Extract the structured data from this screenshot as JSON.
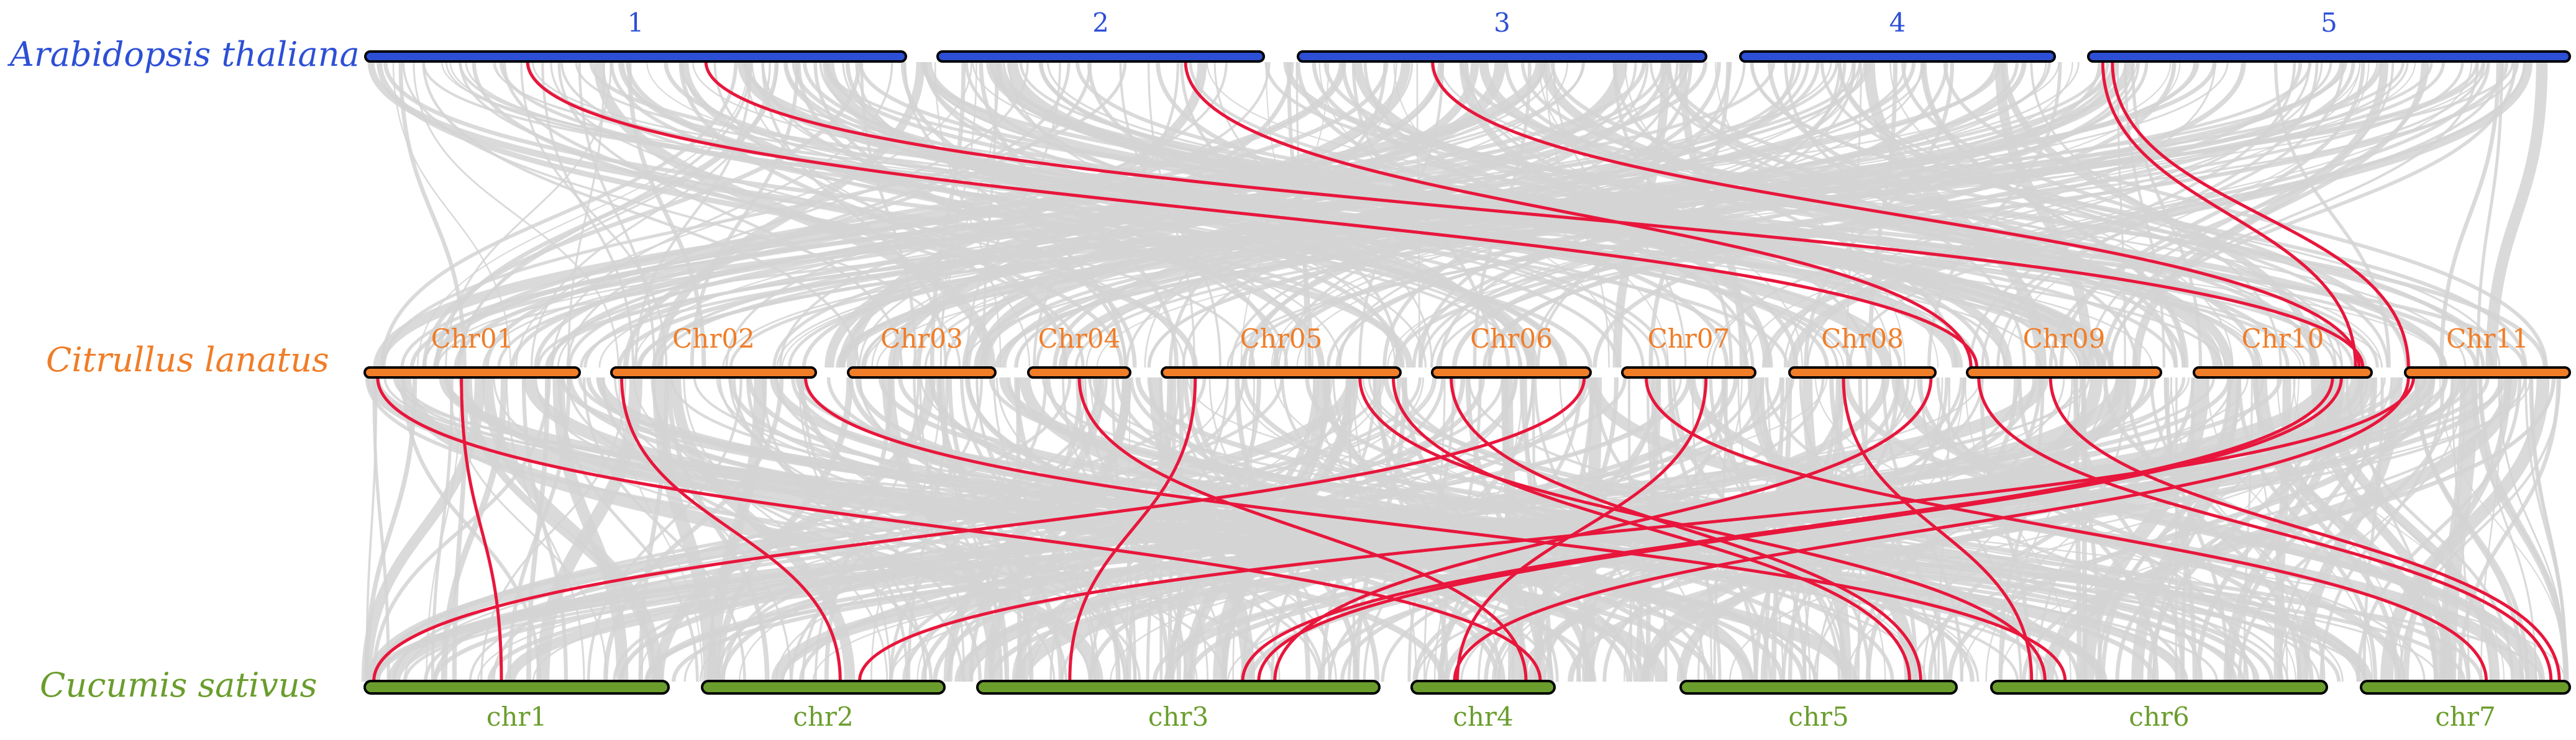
{
  "colors": {
    "arabidopsis": "#2d4fd6",
    "citrullus": "#f07d28",
    "cucumis": "#6a9d2c",
    "background_link": "#d3d3d3",
    "highlight_link": "#e8163c",
    "bar_outline": "#000000"
  },
  "tracks": [
    {
      "key": "arabidopsis",
      "species": "Arabidopsis thaliana",
      "label_position": "above-bar",
      "chromosomes": [
        {
          "name": "1",
          "length": 30.4
        },
        {
          "name": "2",
          "length": 19.7
        },
        {
          "name": "3",
          "length": 23.5
        },
        {
          "name": "4",
          "length": 18.6
        },
        {
          "name": "5",
          "length": 26.9
        }
      ]
    },
    {
      "key": "citrullus",
      "species": "Citrullus lanatus",
      "label_position": "above-bar",
      "chromosomes": [
        {
          "name": "Chr01",
          "length": 35.9
        },
        {
          "name": "Chr02",
          "length": 37.9
        },
        {
          "name": "Chr03",
          "length": 28.9
        },
        {
          "name": "Chr04",
          "length": 27.1
        },
        {
          "name": "Chr05",
          "length": 37.6
        },
        {
          "name": "Chr06",
          "length": 29.4
        },
        {
          "name": "Chr07",
          "length": 33.2
        },
        {
          "name": "Chr08",
          "length": 28.3
        },
        {
          "name": "Chr09",
          "length": 38.3
        },
        {
          "name": "Chr10",
          "length": 35.9
        },
        {
          "name": "Chr11",
          "length": 31.5
        }
      ]
    },
    {
      "key": "cucumis",
      "species": "Cucumis sativus",
      "label_position": "below-bar",
      "chromosomes": [
        {
          "name": "chr1",
          "length": 32.3
        },
        {
          "name": "chr2",
          "length": 24.9
        },
        {
          "name": "chr3",
          "length": 40.4
        },
        {
          "name": "chr4",
          "length": 19.4
        },
        {
          "name": "chr5",
          "length": 28.6
        },
        {
          "name": "chr6",
          "length": 33.9
        },
        {
          "name": "chr7",
          "length": 21.6
        }
      ]
    }
  ],
  "highlighted_links": [
    {
      "from": "arabidopsis",
      "from_chr": "1",
      "from_pos": 0.3,
      "to": "citrullus",
      "to_chr": "Chr09",
      "to_pos": 0.05
    },
    {
      "from": "arabidopsis",
      "from_chr": "1",
      "from_pos": 0.63,
      "to": "citrullus",
      "to_chr": "Chr10",
      "to_pos": 0.95
    },
    {
      "from": "arabidopsis",
      "from_chr": "2",
      "from_pos": 0.76,
      "to": "citrullus",
      "to_chr": "Chr09",
      "to_pos": 0.02
    },
    {
      "from": "arabidopsis",
      "from_chr": "3",
      "from_pos": 0.33,
      "to": "citrullus",
      "to_chr": "Chr10",
      "to_pos": 0.93
    },
    {
      "from": "arabidopsis",
      "from_chr": "5",
      "from_pos": 0.03,
      "to": "citrullus",
      "to_chr": "Chr10",
      "to_pos": 0.91
    },
    {
      "from": "arabidopsis",
      "from_chr": "5",
      "from_pos": 0.05,
      "to": "citrullus",
      "to_chr": "Chr11",
      "to_pos": 0.02
    },
    {
      "from": "citrullus",
      "from_chr": "Chr01",
      "from_pos": 0.06,
      "to": "cucumis",
      "to_chr": "chr4",
      "to_pos": 0.9
    },
    {
      "from": "citrullus",
      "from_chr": "Chr01",
      "from_pos": 0.45,
      "to": "cucumis",
      "to_chr": "chr1",
      "to_pos": 0.45
    },
    {
      "from": "citrullus",
      "from_chr": "Chr02",
      "from_pos": 0.05,
      "to": "cucumis",
      "to_chr": "chr2",
      "to_pos": 0.57
    },
    {
      "from": "citrullus",
      "from_chr": "Chr02",
      "from_pos": 0.95,
      "to": "cucumis",
      "to_chr": "chr6",
      "to_pos": 0.22
    },
    {
      "from": "citrullus",
      "from_chr": "Chr04",
      "from_pos": 0.5,
      "to": "cucumis",
      "to_chr": "chr4",
      "to_pos": 0.8
    },
    {
      "from": "citrullus",
      "from_chr": "Chr05",
      "from_pos": 0.14,
      "to": "cucumis",
      "to_chr": "chr3",
      "to_pos": 0.23
    },
    {
      "from": "citrullus",
      "from_chr": "Chr05",
      "from_pos": 0.97,
      "to": "cucumis",
      "to_chr": "chr5",
      "to_pos": 0.83
    },
    {
      "from": "citrullus",
      "from_chr": "Chr05",
      "from_pos": 0.83,
      "to": "cucumis",
      "to_chr": "chr6",
      "to_pos": 0.16
    },
    {
      "from": "citrullus",
      "from_chr": "Chr06",
      "from_pos": 0.12,
      "to": "cucumis",
      "to_chr": "chr5",
      "to_pos": 0.87
    },
    {
      "from": "citrullus",
      "from_chr": "Chr06",
      "from_pos": 0.96,
      "to": "cucumis",
      "to_chr": "chr1",
      "to_pos": 0.03
    },
    {
      "from": "citrullus",
      "from_chr": "Chr07",
      "from_pos": 0.63,
      "to": "cucumis",
      "to_chr": "chr4",
      "to_pos": 0.32
    },
    {
      "from": "citrullus",
      "from_chr": "Chr07",
      "from_pos": 0.18,
      "to": "cucumis",
      "to_chr": "chr7",
      "to_pos": 0.6
    },
    {
      "from": "citrullus",
      "from_chr": "Chr08",
      "from_pos": 0.97,
      "to": "cucumis",
      "to_chr": "chr3",
      "to_pos": 0.74
    },
    {
      "from": "citrullus",
      "from_chr": "Chr08",
      "from_pos": 0.37,
      "to": "cucumis",
      "to_chr": "chr6",
      "to_pos": 0.12
    },
    {
      "from": "citrullus",
      "from_chr": "Chr09",
      "from_pos": 0.06,
      "to": "cucumis",
      "to_chr": "chr7",
      "to_pos": 0.91
    },
    {
      "from": "citrullus",
      "from_chr": "Chr09",
      "from_pos": 0.43,
      "to": "cucumis",
      "to_chr": "chr7",
      "to_pos": 0.95
    },
    {
      "from": "citrullus",
      "from_chr": "Chr10",
      "from_pos": 0.78,
      "to": "cucumis",
      "to_chr": "chr3",
      "to_pos": 0.66
    },
    {
      "from": "citrullus",
      "from_chr": "Chr10",
      "from_pos": 0.83,
      "to": "cucumis",
      "to_chr": "chr3",
      "to_pos": 0.7
    },
    {
      "from": "citrullus",
      "from_chr": "Chr11",
      "from_pos": 0.02,
      "to": "cucumis",
      "to_chr": "chr4",
      "to_pos": 0.3
    },
    {
      "from": "citrullus",
      "from_chr": "Chr11",
      "from_pos": 0.05,
      "to": "cucumis",
      "to_chr": "chr2",
      "to_pos": 0.65
    }
  ]
}
